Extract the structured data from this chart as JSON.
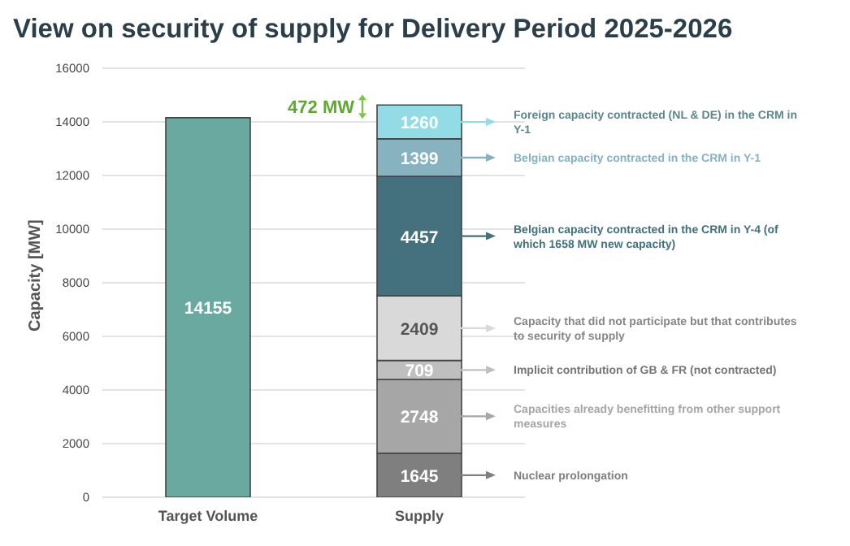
{
  "chart_data": {
    "type": "bar",
    "title": "View on security of supply for Delivery Period 2025-2026",
    "ylabel": "Capacity [MW]",
    "categories": [
      "Target Volume",
      "Supply"
    ],
    "stacked": true,
    "data_labels": true,
    "grid": "y",
    "ylim": [
      0,
      16000
    ],
    "yticks": [
      0,
      2000,
      4000,
      6000,
      8000,
      10000,
      12000,
      14000,
      16000
    ],
    "annotations": [
      "472 MW"
    ],
    "legend": "right",
    "series": [
      {
        "color": "#6aa99f",
        "values": [
          14155,
          null
        ]
      },
      {
        "name": "Nuclear prolongation",
        "color": "#7f7f7f",
        "values": [
          null,
          1645
        ]
      },
      {
        "name": "Capacities already benefitting from other support measures",
        "color": "#a6a6a6",
        "values": [
          null,
          2748
        ]
      },
      {
        "name": "Implicit contribution of GB & FR (not contracted)",
        "color": "#bfbfbf",
        "values": [
          null,
          709
        ]
      },
      {
        "name": "Capacity that did not participate but that contributes to security of supply",
        "color": "#d9d9d9",
        "values": [
          null,
          2409
        ]
      },
      {
        "name": "Belgian capacity contracted in the CRM in Y-4 (of which 1658 MW new capacity)",
        "color": "#45707e",
        "values": [
          null,
          4457
        ]
      },
      {
        "name": "Belgian capacity contracted in the CRM in Y-1",
        "color": "#86b3bf",
        "values": [
          null,
          1399
        ]
      },
      {
        "name": "Foreign capacity contracted (NL & DE) in the CRM in Y-1",
        "color": "#93dce5",
        "values": [
          null,
          1260
        ]
      }
    ]
  }
}
